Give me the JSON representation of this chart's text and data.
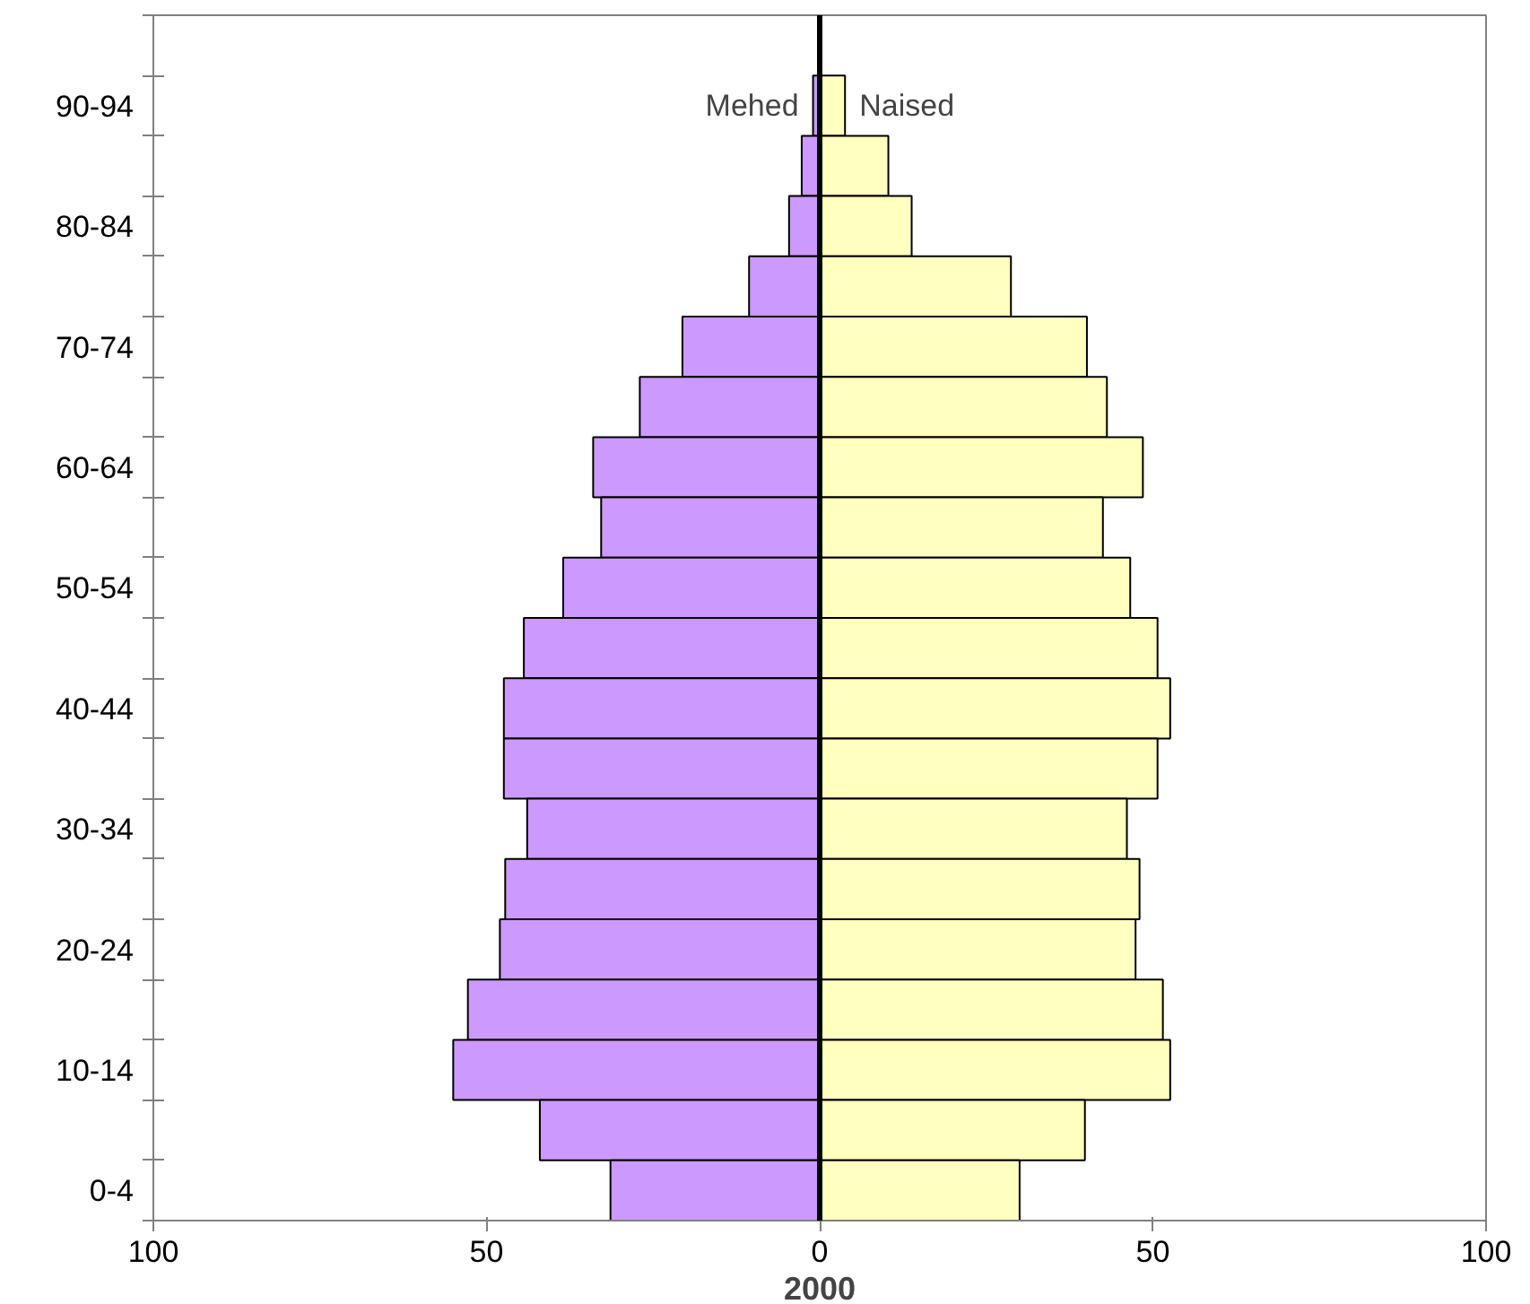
{
  "chart_data": {
    "type": "bar",
    "orientation": "horizontal",
    "stacked": true,
    "xlabel": "2000",
    "categories": [
      null,
      "90-94",
      null,
      "80-84",
      null,
      "70-74",
      null,
      "60-64",
      null,
      "50-54",
      null,
      "40-44",
      null,
      "30-34",
      null,
      "20-24",
      null,
      "10-14",
      null,
      "0-4"
    ],
    "series": [
      {
        "name": "Mehed",
        "color": "#cc99ff",
        "values": [
          null,
          -1,
          -2.7,
          -4.6,
          -10.6,
          -20.6,
          -27,
          -34,
          -32.8,
          -38.5,
          -44.4,
          -47.4,
          -47.4,
          -43.9,
          -47.2,
          -48,
          -52.8,
          -55,
          -42,
          -31.4
        ]
      },
      {
        "name": "Naised",
        "color": "#ffffc0",
        "values": [
          null,
          3.8,
          10.3,
          13.8,
          28.7,
          40.1,
          43.1,
          48.5,
          42.5,
          46.6,
          50.7,
          52.6,
          50.7,
          46.1,
          48,
          47.4,
          51.5,
          52.6,
          39.8,
          30
        ]
      }
    ],
    "xlim": [
      -100,
      100
    ],
    "xticks": [
      {
        "value": -100,
        "label": "100"
      },
      {
        "value": -50,
        "label": "50"
      },
      0,
      50,
      100
    ],
    "ref_lines": [
      {
        "axis": "x",
        "value": 0,
        "color": "#000000"
      }
    ],
    "grid": false,
    "legend": false
  }
}
